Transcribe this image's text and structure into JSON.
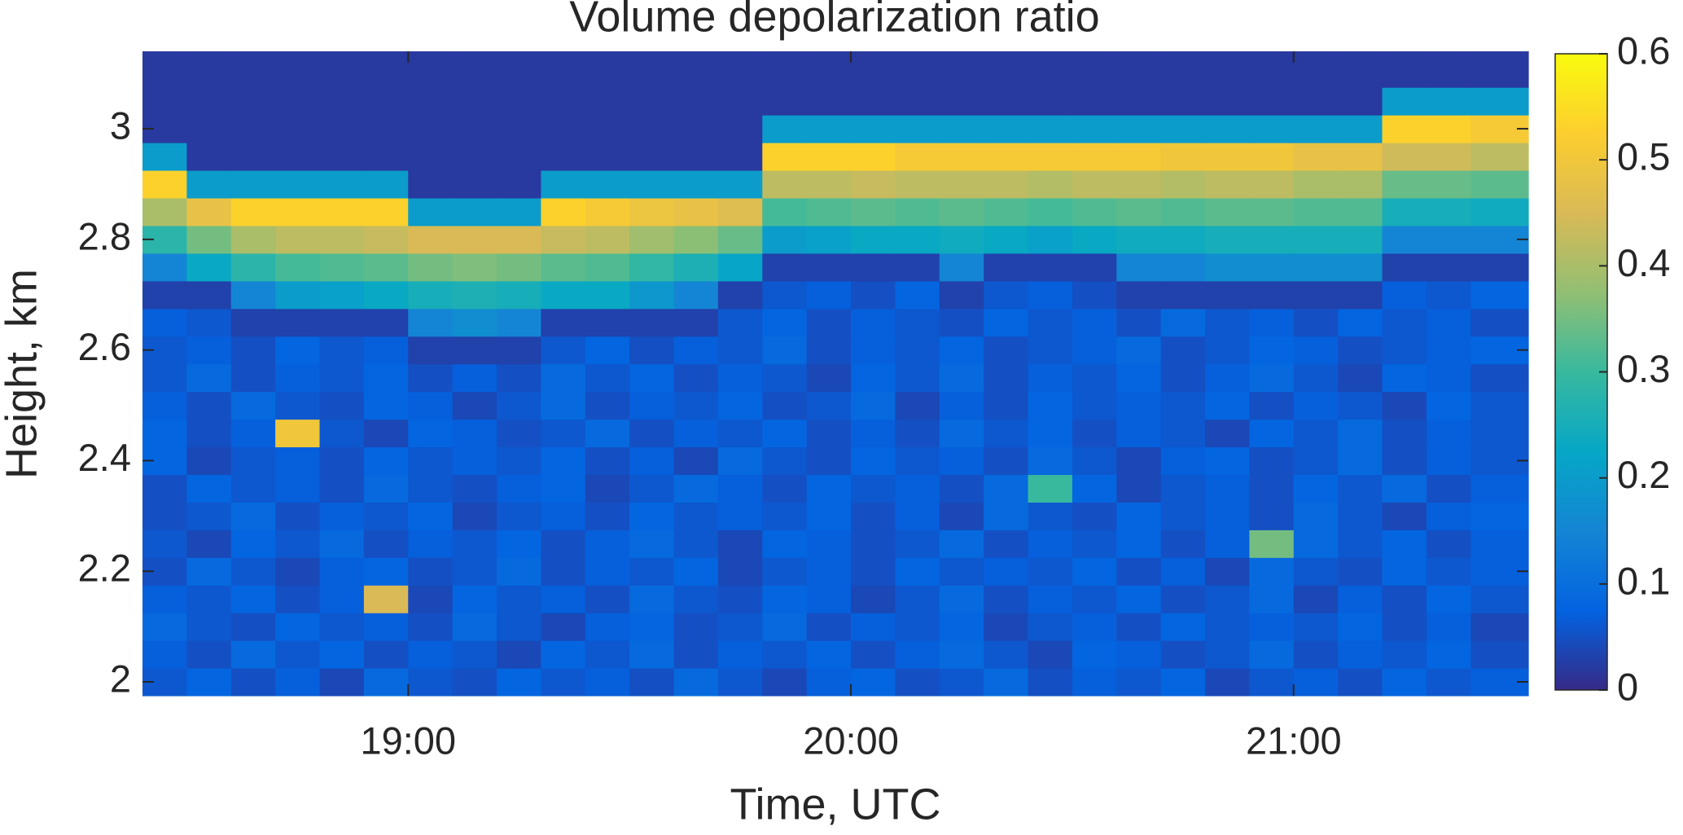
{
  "chart_data": {
    "type": "heatmap",
    "title": "Volume depolarization ratio",
    "xlabel": "Time, UTC",
    "ylabel": "Height, km",
    "xlim": [
      18.4,
      21.53
    ],
    "xticks": [
      {
        "value": 19,
        "label": "19:00"
      },
      {
        "value": 20,
        "label": "20:00"
      },
      {
        "value": 21,
        "label": "21:00"
      }
    ],
    "ylim": [
      1.975,
      3.14
    ],
    "yticks": [
      2,
      2.2,
      2.4,
      2.6,
      2.8,
      3
    ],
    "clim": [
      0,
      0.6
    ],
    "colorbar_ticks": [
      0,
      0.1,
      0.2,
      0.3,
      0.4,
      0.5,
      0.6
    ],
    "colormap": [
      "#352a87",
      "#0363e1",
      "#1485d4",
      "#06a7c6",
      "#38b99e",
      "#92bf73",
      "#d9ba56",
      "#fcce2e",
      "#f9fb0e"
    ],
    "x": [
      18.45,
      18.55,
      18.65,
      18.75,
      18.85,
      18.95,
      19.05,
      19.15,
      19.25,
      19.35,
      19.45,
      19.55,
      19.65,
      19.75,
      19.85,
      19.95,
      20.05,
      20.15,
      20.25,
      20.35,
      20.45,
      20.55,
      20.65,
      20.75,
      20.85,
      20.95,
      21.05,
      21.15,
      21.25,
      21.35,
      21.45
    ],
    "y": [
      2.0,
      2.05,
      2.1,
      2.15,
      2.2,
      2.25,
      2.3,
      2.35,
      2.4,
      2.45,
      2.5,
      2.55,
      2.6,
      2.65,
      2.7,
      2.75,
      2.8,
      2.85,
      2.9,
      2.95,
      3.0,
      3.05,
      3.1
    ],
    "z": [
      [
        0.06,
        0.08,
        0.05,
        0.07,
        0.04,
        0.09,
        0.06,
        0.05,
        0.08,
        0.06,
        0.07,
        0.05,
        0.09,
        0.06,
        0.04,
        0.07,
        0.08,
        0.05,
        0.06,
        0.09,
        0.05,
        0.07,
        0.06,
        0.08,
        0.04,
        0.06,
        0.07,
        0.05,
        0.08,
        0.06,
        0.07
      ],
      [
        0.07,
        0.05,
        0.09,
        0.06,
        0.08,
        0.05,
        0.07,
        0.06,
        0.04,
        0.08,
        0.06,
        0.09,
        0.05,
        0.07,
        0.06,
        0.08,
        0.05,
        0.07,
        0.09,
        0.06,
        0.04,
        0.08,
        0.07,
        0.05,
        0.06,
        0.09,
        0.05,
        0.07,
        0.06,
        0.08,
        0.05
      ],
      [
        0.09,
        0.06,
        0.05,
        0.08,
        0.06,
        0.07,
        0.05,
        0.09,
        0.06,
        0.04,
        0.07,
        0.08,
        0.05,
        0.06,
        0.09,
        0.05,
        0.07,
        0.06,
        0.08,
        0.04,
        0.06,
        0.07,
        0.05,
        0.08,
        0.06,
        0.07,
        0.06,
        0.08,
        0.05,
        0.07,
        0.04
      ],
      [
        0.07,
        0.06,
        0.08,
        0.05,
        0.07,
        0.45,
        0.04,
        0.08,
        0.06,
        0.07,
        0.05,
        0.09,
        0.06,
        0.05,
        0.08,
        0.07,
        0.04,
        0.06,
        0.09,
        0.05,
        0.07,
        0.06,
        0.08,
        0.05,
        0.06,
        0.09,
        0.04,
        0.07,
        0.05,
        0.08,
        0.06
      ],
      [
        0.05,
        0.09,
        0.06,
        0.04,
        0.07,
        0.08,
        0.05,
        0.06,
        0.09,
        0.05,
        0.07,
        0.06,
        0.08,
        0.04,
        0.06,
        0.07,
        0.05,
        0.08,
        0.06,
        0.07,
        0.06,
        0.08,
        0.05,
        0.07,
        0.04,
        0.09,
        0.06,
        0.05,
        0.08,
        0.06,
        0.07
      ],
      [
        0.06,
        0.04,
        0.08,
        0.06,
        0.09,
        0.05,
        0.07,
        0.06,
        0.08,
        0.05,
        0.07,
        0.09,
        0.06,
        0.04,
        0.08,
        0.07,
        0.05,
        0.06,
        0.09,
        0.05,
        0.07,
        0.06,
        0.08,
        0.05,
        0.07,
        0.35,
        0.09,
        0.06,
        0.08,
        0.05,
        0.07
      ],
      [
        0.05,
        0.06,
        0.09,
        0.05,
        0.07,
        0.06,
        0.08,
        0.04,
        0.06,
        0.07,
        0.05,
        0.08,
        0.06,
        0.07,
        0.06,
        0.08,
        0.05,
        0.07,
        0.04,
        0.09,
        0.06,
        0.05,
        0.08,
        0.06,
        0.07,
        0.05,
        0.09,
        0.06,
        0.04,
        0.07,
        0.08
      ],
      [
        0.05,
        0.08,
        0.06,
        0.07,
        0.05,
        0.09,
        0.06,
        0.05,
        0.07,
        0.08,
        0.04,
        0.06,
        0.09,
        0.07,
        0.05,
        0.08,
        0.06,
        0.07,
        0.05,
        0.09,
        0.3,
        0.08,
        0.04,
        0.06,
        0.07,
        0.05,
        0.08,
        0.06,
        0.09,
        0.05,
        0.07
      ],
      [
        0.08,
        0.04,
        0.06,
        0.07,
        0.05,
        0.08,
        0.06,
        0.07,
        0.06,
        0.08,
        0.05,
        0.07,
        0.04,
        0.09,
        0.06,
        0.05,
        0.08,
        0.06,
        0.07,
        0.05,
        0.09,
        0.06,
        0.04,
        0.07,
        0.08,
        0.05,
        0.06,
        0.09,
        0.05,
        0.07,
        0.06
      ],
      [
        0.08,
        0.05,
        0.07,
        0.5,
        0.06,
        0.04,
        0.08,
        0.07,
        0.05,
        0.06,
        0.09,
        0.05,
        0.07,
        0.06,
        0.08,
        0.05,
        0.07,
        0.05,
        0.09,
        0.06,
        0.08,
        0.05,
        0.07,
        0.06,
        0.04,
        0.08,
        0.06,
        0.09,
        0.05,
        0.07,
        0.06
      ],
      [
        0.07,
        0.05,
        0.09,
        0.06,
        0.05,
        0.08,
        0.07,
        0.04,
        0.06,
        0.09,
        0.05,
        0.07,
        0.06,
        0.08,
        0.05,
        0.06,
        0.09,
        0.04,
        0.07,
        0.05,
        0.08,
        0.06,
        0.07,
        0.06,
        0.08,
        0.05,
        0.07,
        0.06,
        0.04,
        0.08,
        0.06
      ],
      [
        0.06,
        0.09,
        0.05,
        0.07,
        0.06,
        0.08,
        0.05,
        0.07,
        0.05,
        0.09,
        0.06,
        0.08,
        0.05,
        0.07,
        0.06,
        0.04,
        0.08,
        0.06,
        0.09,
        0.05,
        0.07,
        0.06,
        0.08,
        0.05,
        0.07,
        0.09,
        0.06,
        0.04,
        0.08,
        0.07,
        0.05
      ],
      [
        0.06,
        0.07,
        0.05,
        0.08,
        0.06,
        0.07,
        0.03,
        0.03,
        0.03,
        0.06,
        0.08,
        0.05,
        0.07,
        0.06,
        0.09,
        0.05,
        0.07,
        0.06,
        0.08,
        0.05,
        0.06,
        0.07,
        0.09,
        0.05,
        0.06,
        0.08,
        0.07,
        0.05,
        0.06,
        0.07,
        0.08
      ],
      [
        0.07,
        0.06,
        0.03,
        0.03,
        0.03,
        0.03,
        0.15,
        0.17,
        0.15,
        0.03,
        0.03,
        0.03,
        0.03,
        0.06,
        0.08,
        0.05,
        0.07,
        0.06,
        0.05,
        0.08,
        0.06,
        0.07,
        0.05,
        0.09,
        0.06,
        0.07,
        0.05,
        0.08,
        0.06,
        0.07,
        0.05
      ],
      [
        0.03,
        0.03,
        0.15,
        0.2,
        0.21,
        0.23,
        0.25,
        0.26,
        0.25,
        0.23,
        0.23,
        0.19,
        0.15,
        0.03,
        0.06,
        0.07,
        0.05,
        0.08,
        0.03,
        0.06,
        0.07,
        0.05,
        0.03,
        0.03,
        0.03,
        0.03,
        0.03,
        0.03,
        0.07,
        0.06,
        0.08
      ],
      [
        0.15,
        0.23,
        0.28,
        0.31,
        0.32,
        0.33,
        0.35,
        0.36,
        0.35,
        0.33,
        0.32,
        0.29,
        0.26,
        0.22,
        0.03,
        0.03,
        0.03,
        0.03,
        0.15,
        0.03,
        0.03,
        0.03,
        0.15,
        0.15,
        0.17,
        0.17,
        0.17,
        0.17,
        0.03,
        0.03,
        0.03
      ],
      [
        0.28,
        0.35,
        0.4,
        0.42,
        0.42,
        0.43,
        0.45,
        0.45,
        0.45,
        0.43,
        0.42,
        0.39,
        0.37,
        0.34,
        0.2,
        0.21,
        0.23,
        0.23,
        0.24,
        0.23,
        0.21,
        0.23,
        0.24,
        0.24,
        0.25,
        0.25,
        0.25,
        0.25,
        0.15,
        0.15,
        0.15
      ],
      [
        0.4,
        0.48,
        0.53,
        0.53,
        0.53,
        0.53,
        0.2,
        0.2,
        0.2,
        0.53,
        0.51,
        0.49,
        0.48,
        0.46,
        0.31,
        0.32,
        0.33,
        0.32,
        0.33,
        0.32,
        0.31,
        0.32,
        0.33,
        0.32,
        0.33,
        0.33,
        0.32,
        0.32,
        0.25,
        0.25,
        0.24
      ],
      [
        0.53,
        0.2,
        0.2,
        0.2,
        0.2,
        0.2,
        0.02,
        0.02,
        0.02,
        0.2,
        0.2,
        0.2,
        0.2,
        0.2,
        0.42,
        0.42,
        0.43,
        0.42,
        0.42,
        0.42,
        0.41,
        0.42,
        0.42,
        0.41,
        0.42,
        0.42,
        0.4,
        0.4,
        0.34,
        0.34,
        0.33
      ],
      [
        0.2,
        0.02,
        0.02,
        0.02,
        0.02,
        0.02,
        0.02,
        0.02,
        0.02,
        0.02,
        0.02,
        0.02,
        0.02,
        0.02,
        0.53,
        0.53,
        0.53,
        0.51,
        0.51,
        0.51,
        0.51,
        0.51,
        0.51,
        0.5,
        0.5,
        0.5,
        0.48,
        0.48,
        0.44,
        0.44,
        0.42
      ],
      [
        0.02,
        0.02,
        0.02,
        0.02,
        0.02,
        0.02,
        0.02,
        0.02,
        0.02,
        0.02,
        0.02,
        0.02,
        0.02,
        0.02,
        0.2,
        0.2,
        0.2,
        0.2,
        0.2,
        0.2,
        0.2,
        0.2,
        0.2,
        0.2,
        0.2,
        0.2,
        0.2,
        0.2,
        0.53,
        0.53,
        0.51
      ],
      [
        0.02,
        0.02,
        0.02,
        0.02,
        0.02,
        0.02,
        0.02,
        0.02,
        0.02,
        0.02,
        0.02,
        0.02,
        0.02,
        0.02,
        0.02,
        0.02,
        0.02,
        0.02,
        0.02,
        0.02,
        0.02,
        0.02,
        0.02,
        0.02,
        0.02,
        0.02,
        0.02,
        0.02,
        0.2,
        0.2,
        0.2
      ],
      [
        0.02,
        0.02,
        0.02,
        0.02,
        0.02,
        0.02,
        0.02,
        0.02,
        0.02,
        0.02,
        0.02,
        0.02,
        0.02,
        0.02,
        0.02,
        0.02,
        0.02,
        0.02,
        0.02,
        0.02,
        0.02,
        0.02,
        0.02,
        0.02,
        0.02,
        0.02,
        0.02,
        0.02,
        0.02,
        0.02,
        0.02
      ]
    ]
  }
}
